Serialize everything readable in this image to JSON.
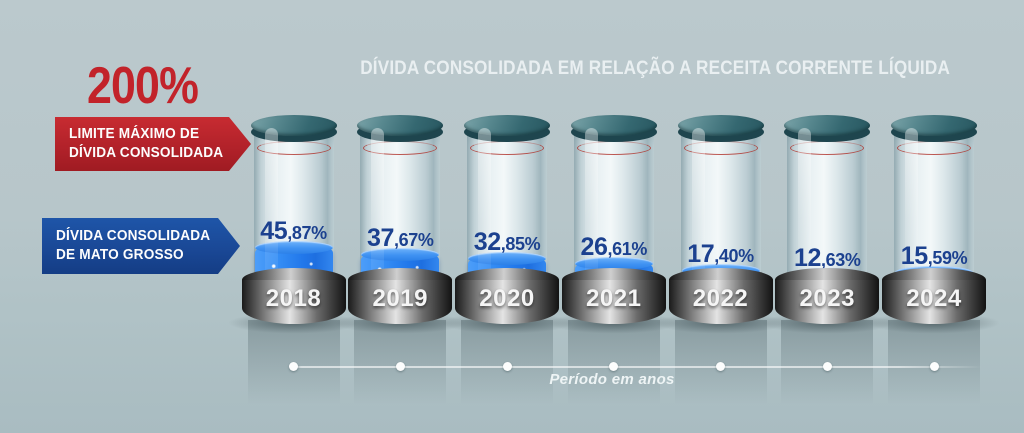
{
  "title": "DÍVIDA CONSOLIDADA EM RELAÇÃO A RECEITA CORRENTE LÍQUIDA",
  "limit_callout": {
    "value": "200%",
    "label_line1": "LIMITE MÁXIMO DE",
    "label_line2": "DÍVIDA CONSOLIDADA"
  },
  "series_callout": {
    "label_line1": "DÍVIDA CONSOLIDADA",
    "label_line2": "DE MATO GROSSO"
  },
  "x_axis_label": "Período em anos",
  "colors": {
    "background": "#b7c6ca",
    "limit_red": "#c2232a",
    "series_blue": "#1b4a9b",
    "value_text": "#1c418f",
    "liquid_blue": "#2e86f3",
    "cap_teal": "#3a6d77",
    "title_text": "#e9eff1",
    "base_metal_light": "#d8d8d8",
    "base_metal_dark": "#141414"
  },
  "chart_data": {
    "type": "bar",
    "title": "DÍVIDA CONSOLIDADA EM RELAÇÃO A RECEITA CORRENTE LÍQUIDA",
    "xlabel": "Período em anos",
    "ylabel": "",
    "unit": "%",
    "categories": [
      "2018",
      "2019",
      "2020",
      "2021",
      "2022",
      "2023",
      "2024"
    ],
    "values": [
      45.87,
      37.67,
      32.85,
      26.61,
      17.4,
      12.63,
      15.59
    ],
    "labels": [
      "45,87%",
      "37,67%",
      "32,85%",
      "26,61%",
      "17,40%",
      "12,63%",
      "15,59%"
    ],
    "series": [
      {
        "name": "Dívida consolidada de Mato Grosso",
        "values": [
          45.87,
          37.67,
          32.85,
          26.61,
          17.4,
          12.63,
          15.59
        ]
      }
    ],
    "limit": {
      "value": 200,
      "label": "200%",
      "description": "Limite máximo de dívida consolidada"
    },
    "legend_position": "left",
    "grid": false
  }
}
